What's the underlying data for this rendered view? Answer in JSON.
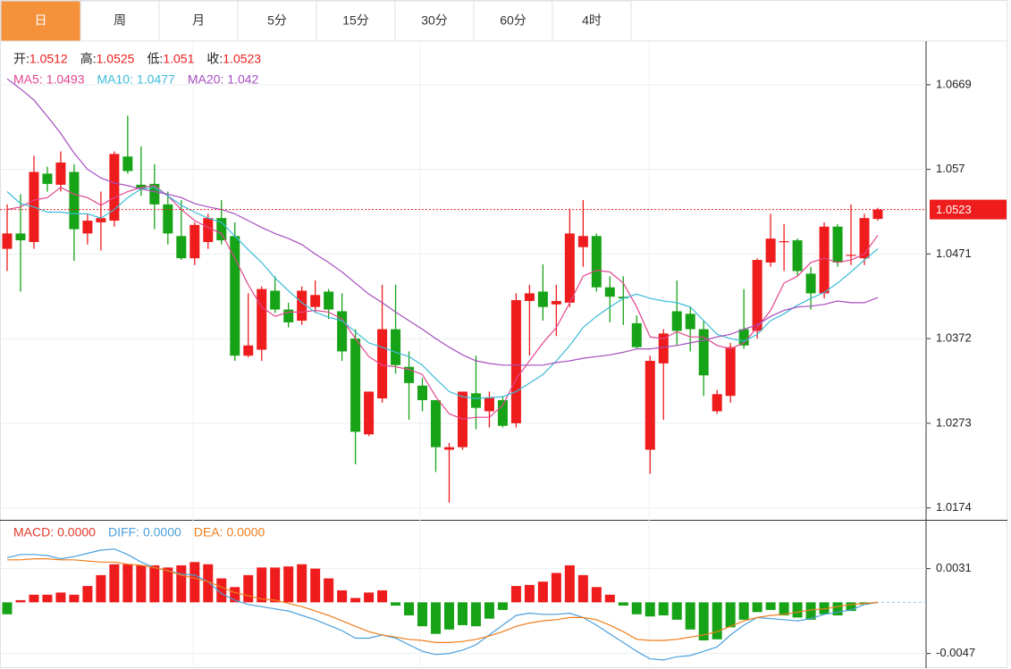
{
  "tabs": [
    "日",
    "周",
    "月",
    "5分",
    "15分",
    "30分",
    "60分",
    "4时"
  ],
  "active_tab": 0,
  "chart_data": [
    {
      "type": "candlestick",
      "quote": [
        {
          "label": "开:",
          "value": 1.0512
        },
        {
          "label": "高:",
          "value": 1.0525
        },
        {
          "label": "低:",
          "value": 1.051
        },
        {
          "label": "收:",
          "value": 1.0523
        }
      ],
      "open": [
        1.0477,
        1.0495,
        1.0485,
        1.0565,
        1.0552,
        1.0567,
        1.0495,
        1.0508,
        1.051,
        1.0585,
        1.0552,
        1.0553,
        1.0529,
        1.0492,
        1.0466,
        1.0485,
        1.0513,
        1.0492,
        1.0352,
        1.0359,
        1.0428,
        1.0406,
        1.0393,
        1.0409,
        1.0427,
        1.0404,
        1.0372,
        1.026,
        1.0302,
        1.0383,
        1.0339,
        1.0317,
        1.03,
        1.0242,
        1.0245,
        1.0308,
        1.0287,
        1.03,
        1.0273,
        1.0416,
        1.0427,
        1.0412,
        1.0414,
        1.0479,
        1.0492,
        1.0432,
        1.0421,
        1.039,
        1.0242,
        1.0343,
        1.0404,
        1.0401,
        1.0383,
        1.0287,
        1.0305,
        1.0383,
        1.0381,
        1.0461,
        1.0485,
        1.0487,
        1.0448,
        1.0425,
        1.0503,
        1.0469,
        1.0466,
        1.0512
      ],
      "high": [
        1.0529,
        1.0541,
        1.0586,
        1.0573,
        1.0591,
        1.0576,
        1.0518,
        1.0544,
        1.0591,
        1.0633,
        1.0597,
        1.0576,
        1.0544,
        1.0534,
        1.0508,
        1.0518,
        1.0534,
        1.0508,
        1.0425,
        1.0433,
        1.0445,
        1.0414,
        1.0433,
        1.044,
        1.043,
        1.0425,
        1.0383,
        1.031,
        1.0435,
        1.0435,
        1.0357,
        1.0326,
        1.03,
        1.025,
        1.031,
        1.0352,
        1.031,
        1.0305,
        1.0425,
        1.0435,
        1.0459,
        1.0435,
        1.0524,
        1.0534,
        1.0495,
        1.0445,
        1.0445,
        1.0399,
        1.0352,
        1.0383,
        1.044,
        1.0409,
        1.0393,
        1.0312,
        1.0367,
        1.043,
        1.0466,
        1.0518,
        1.0506,
        1.0489,
        1.0456,
        1.0508,
        1.0506,
        1.0529,
        1.0518,
        1.0525
      ],
      "low": [
        1.0451,
        1.0427,
        1.0477,
        1.0544,
        1.0544,
        1.0463,
        1.0482,
        1.0475,
        1.0503,
        1.0565,
        1.0539,
        1.05,
        1.0482,
        1.0464,
        1.0458,
        1.0477,
        1.0482,
        1.0346,
        1.035,
        1.0346,
        1.0402,
        1.0385,
        1.0388,
        1.0402,
        1.0395,
        1.0346,
        1.0225,
        1.0258,
        1.0297,
        1.0331,
        1.0277,
        1.0287,
        1.0216,
        1.018,
        1.0242,
        1.0266,
        1.0268,
        1.0268,
        1.0268,
        1.0352,
        1.0393,
        1.0375,
        1.0409,
        1.0456,
        1.0427,
        1.0391,
        1.0388,
        1.036,
        1.0214,
        1.0277,
        1.0364,
        1.0357,
        1.0305,
        1.0284,
        1.0297,
        1.036,
        1.0372,
        1.0456,
        1.0451,
        1.0445,
        1.0406,
        1.0419,
        1.0456,
        1.0458,
        1.0458,
        1.051
      ],
      "close": [
        1.0495,
        1.0487,
        1.0567,
        1.0553,
        1.0578,
        1.05,
        1.051,
        1.0513,
        1.0588,
        1.0568,
        1.0547,
        1.0529,
        1.0495,
        1.0466,
        1.0505,
        1.0513,
        1.0487,
        1.0352,
        1.0364,
        1.043,
        1.0406,
        1.0391,
        1.0428,
        1.0423,
        1.0406,
        1.0357,
        1.0263,
        1.031,
        1.0383,
        1.0341,
        1.032,
        1.03,
        1.0245,
        1.0245,
        1.031,
        1.0291,
        1.0303,
        1.027,
        1.0417,
        1.0425,
        1.0409,
        1.0416,
        1.0495,
        1.0492,
        1.0432,
        1.0421,
        1.0419,
        1.0362,
        1.0346,
        1.0378,
        1.0381,
        1.0383,
        1.0329,
        1.0307,
        1.0362,
        1.0364,
        1.0464,
        1.0489,
        1.0486,
        1.0451,
        1.0425,
        1.0503,
        1.0461,
        1.047,
        1.0513,
        1.0523
      ],
      "series": [
        {
          "name": "MA5:",
          "color": "#e2458f",
          "legend_value": 1.0493,
          "values": [
            1.0523,
            1.0526,
            1.0534,
            1.0537,
            1.0549,
            1.0541,
            1.0537,
            1.0528,
            1.0537,
            1.0544,
            1.0549,
            1.0551,
            1.0539,
            1.0523,
            1.051,
            1.0502,
            1.0495,
            1.0466,
            1.0435,
            1.0409,
            1.0398,
            1.0403,
            1.0403,
            1.0405,
            1.0403,
            1.0395,
            1.0372,
            1.0351,
            1.0341,
            1.0339,
            1.0336,
            1.033,
            1.0304,
            1.0284,
            1.0278,
            1.028,
            1.028,
            1.0294,
            1.0325,
            1.0346,
            1.0367,
            1.0385,
            1.0414,
            1.0445,
            1.0452,
            1.045,
            1.0437,
            1.0409,
            1.0374,
            1.0372,
            1.038,
            1.0374,
            1.0374,
            1.0364,
            1.036,
            1.0367,
            1.0385,
            1.0405,
            1.0437,
            1.0445,
            1.0461,
            1.0466,
            1.0461,
            1.0464,
            1.0471,
            1.0493
          ]
        },
        {
          "name": "MA10:",
          "color": "#3bbcd8",
          "legend_value": 1.0477,
          "values": [
            1.0544,
            1.053,
            1.0526,
            1.052,
            1.052,
            1.0518,
            1.0518,
            1.0513,
            1.0523,
            1.0537,
            1.0547,
            1.0549,
            1.0539,
            1.0528,
            1.052,
            1.0513,
            1.0508,
            1.0492,
            1.0476,
            1.0461,
            1.0443,
            1.0428,
            1.0414,
            1.0403,
            1.0397,
            1.0393,
            1.038,
            1.0367,
            1.0362,
            1.0356,
            1.0351,
            1.0341,
            1.0325,
            1.031,
            1.0304,
            1.0302,
            1.0303,
            1.0304,
            1.031,
            1.032,
            1.033,
            1.0346,
            1.0364,
            1.0385,
            1.0398,
            1.0409,
            1.0419,
            1.0424,
            1.0419,
            1.0416,
            1.0414,
            1.0409,
            1.0393,
            1.0377,
            1.0372,
            1.0369,
            1.0377,
            1.0393,
            1.0401,
            1.0411,
            1.0419,
            1.0426,
            1.0437,
            1.045,
            1.0464,
            1.0477
          ]
        },
        {
          "name": "MA20:",
          "color": "#a54dbe",
          "legend_value": 1.042,
          "values": [
            1.0676,
            1.0664,
            1.0651,
            1.0632,
            1.0612,
            1.0589,
            1.057,
            1.056,
            1.0554,
            1.0551,
            1.0547,
            1.0544,
            1.0541,
            1.0537,
            1.053,
            1.0526,
            1.0523,
            1.0518,
            1.051,
            1.0502,
            1.0495,
            1.0489,
            1.0482,
            1.0471,
            1.0461,
            1.045,
            1.0437,
            1.0424,
            1.0414,
            1.0403,
            1.0393,
            1.0383,
            1.0372,
            1.0362,
            1.0353,
            1.0346,
            1.0343,
            1.0341,
            1.0341,
            1.0341,
            1.0341,
            1.0344,
            1.0346,
            1.0349,
            1.0351,
            1.0353,
            1.0356,
            1.036,
            1.036,
            1.0362,
            1.0364,
            1.0367,
            1.037,
            1.0374,
            1.0377,
            1.0383,
            1.0388,
            1.0398,
            1.0405,
            1.0409,
            1.041,
            1.0412,
            1.0416,
            1.0414,
            1.0414,
            1.042
          ]
        }
      ],
      "ylim": [
        1.016,
        1.0719
      ],
      "yticks": [
        1.0669,
        1.057,
        1.0471,
        1.0372,
        1.0273,
        1.0174
      ],
      "last_price": 1.0523,
      "up_color": "#ee1c1c",
      "down_color": "#17a317",
      "grid": true
    },
    {
      "type": "macd",
      "series": [
        {
          "name": "MACD:",
          "color": "#e0382a",
          "legend_value": 0,
          "legend_value_label": "0.0000",
          "values": [
            -0.0011,
            0.0002,
            0.0007,
            0.0007,
            0.0009,
            0.0007,
            0.0015,
            0.0025,
            0.0035,
            0.0035,
            0.0034,
            0.0034,
            0.0032,
            0.0034,
            0.0037,
            0.0035,
            0.0022,
            0.0014,
            0.0025,
            0.0032,
            0.0032,
            0.0033,
            0.0035,
            0.0031,
            0.0022,
            0.0011,
            0.0004,
            0.0009,
            0.0011,
            -0.0003,
            -0.0012,
            -0.0022,
            -0.0029,
            -0.0025,
            -0.0021,
            -0.0022,
            -0.0015,
            -0.0007,
            0.0015,
            0.0016,
            0.0019,
            0.0027,
            0.0034,
            0.0025,
            0.0014,
            0.0007,
            -0.0003,
            -0.0011,
            -0.0013,
            -0.0012,
            -0.0016,
            -0.0025,
            -0.0035,
            -0.0034,
            -0.0023,
            -0.0016,
            -0.0009,
            -0.0007,
            -0.0012,
            -0.0014,
            -0.0016,
            -0.0011,
            -0.0012,
            -0.0008,
            -0.0002,
            0
          ]
        },
        {
          "name": "DIFF:",
          "color": "#4a9fdd",
          "legend_value": 0,
          "legend_value_label": "0.0000",
          "values": [
            0.0041,
            0.0044,
            0.0044,
            0.0043,
            0.004,
            0.0042,
            0.0045,
            0.0048,
            0.0049,
            0.0044,
            0.0037,
            0.0032,
            0.0029,
            0.0026,
            0.0025,
            0.0019,
            0.0008,
            0.0002,
            -0.0002,
            -0.0004,
            -0.0006,
            -0.0008,
            -0.0012,
            -0.0016,
            -0.0021,
            -0.0026,
            -0.0033,
            -0.0033,
            -0.003,
            -0.0033,
            -0.0039,
            -0.0045,
            -0.0048,
            -0.0047,
            -0.0044,
            -0.0039,
            -0.003,
            -0.0021,
            -0.0012,
            -0.001,
            -0.0011,
            -0.0011,
            -0.001,
            -0.0014,
            -0.0021,
            -0.0029,
            -0.0037,
            -0.0045,
            -0.0052,
            -0.0053,
            -0.005,
            -0.0049,
            -0.0045,
            -0.0041,
            -0.003,
            -0.0021,
            -0.0014,
            -0.0015,
            -0.0016,
            -0.0017,
            -0.0015,
            -0.0011,
            -0.0009,
            -0.0007,
            -0.0002,
            0
          ]
        },
        {
          "name": "DEA:",
          "color": "#ee7d1c",
          "legend_value": 0,
          "legend_value_label": "0.0000",
          "values": [
            0.0039,
            0.0039,
            0.004,
            0.004,
            0.0039,
            0.0039,
            0.0038,
            0.0037,
            0.0037,
            0.0035,
            0.0034,
            0.0032,
            0.0029,
            0.0025,
            0.0022,
            0.0019,
            0.0014,
            0.0009,
            0.0006,
            0.0003,
            0.0002,
            -0.0001,
            -0.0004,
            -0.0008,
            -0.0012,
            -0.0017,
            -0.0022,
            -0.0027,
            -0.003,
            -0.0032,
            -0.0034,
            -0.0035,
            -0.0037,
            -0.0037,
            -0.0036,
            -0.0034,
            -0.0031,
            -0.0027,
            -0.0022,
            -0.0019,
            -0.0017,
            -0.0016,
            -0.0014,
            -0.0014,
            -0.0016,
            -0.0021,
            -0.0027,
            -0.0034,
            -0.0035,
            -0.0035,
            -0.0034,
            -0.0032,
            -0.003,
            -0.0027,
            -0.0022,
            -0.0017,
            -0.0014,
            -0.0012,
            -0.0011,
            -0.0009,
            -0.0007,
            -0.0006,
            -0.0004,
            -0.0002,
            -0.0001,
            0
          ]
        }
      ],
      "ylim": [
        -0.0058,
        0.0075
      ],
      "yticks": [
        0.0031,
        -0.0047
      ],
      "up_color": "#ee1c1c",
      "down_color": "#17a317",
      "grid": true
    }
  ]
}
